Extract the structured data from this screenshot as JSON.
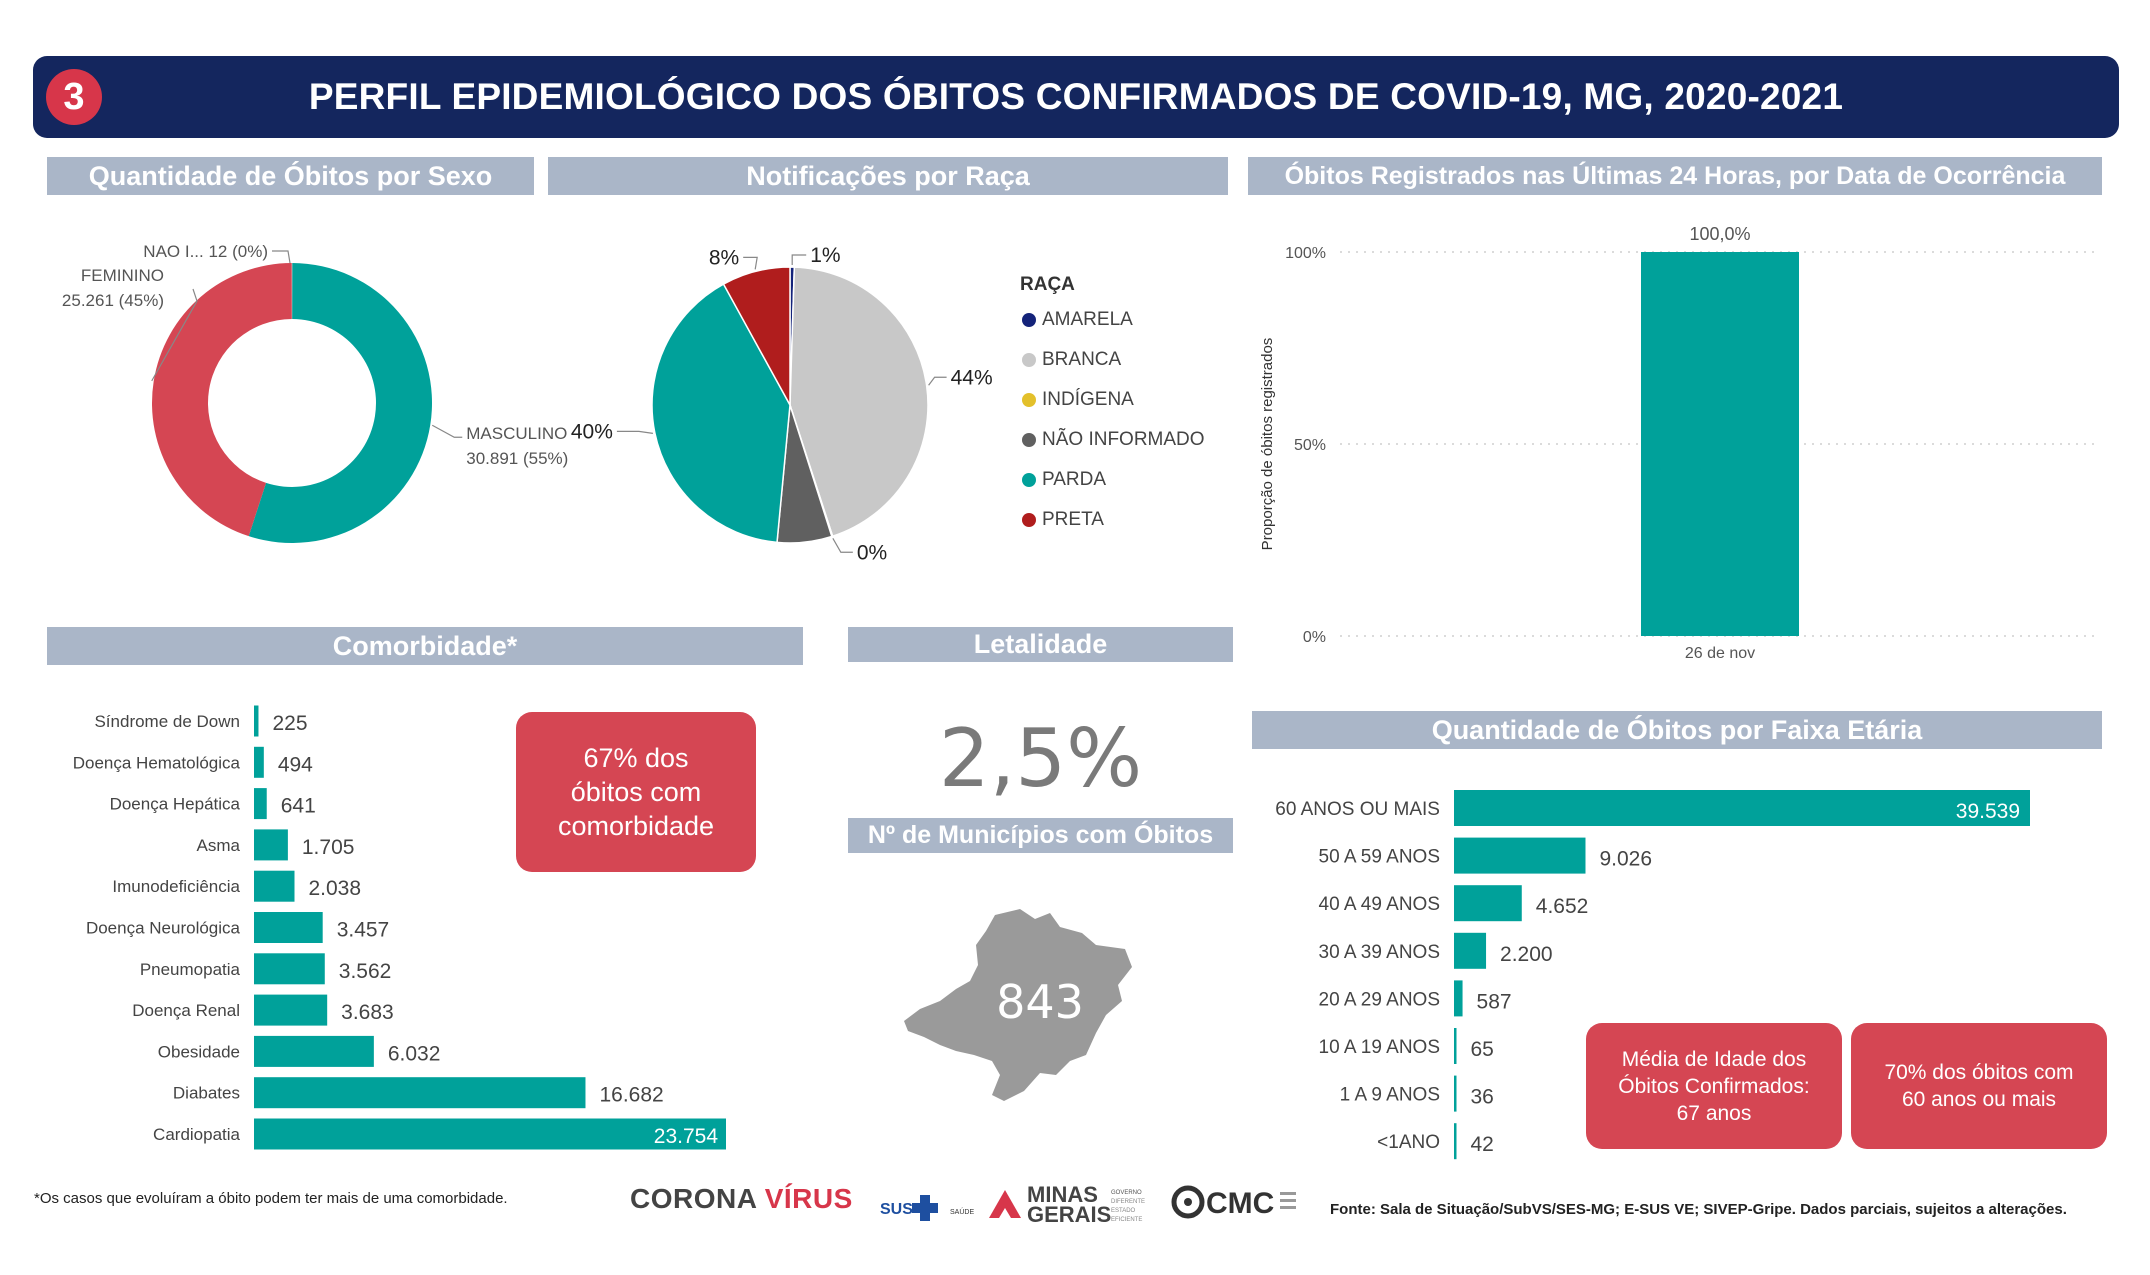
{
  "header": {
    "badge": "3",
    "title": "PERFIL EPIDEMIOLÓGICO DOS ÓBITOS CONFIRMADOS DE COVID-19, MG, 2020-2021"
  },
  "sections": {
    "sexo": "Quantidade de Óbitos por Sexo",
    "raca": "Notificações por Raça",
    "ultimas24h": "Óbitos Registrados nas Últimas 24 Horas, por Data de Ocorrência",
    "comorbidade": "Comorbidade*",
    "letalidade": "Letalidade",
    "municipios": "Nº de Municípios com Óbitos",
    "faixa_etaria": "Quantidade de Óbitos por Faixa Etária"
  },
  "colors": {
    "teal": "#00a19a",
    "red": "#d54653",
    "navy": "#14265e",
    "header_gray": "#aab6c8",
    "map_gray": "#9a9a9a"
  },
  "kpi": {
    "letalidade": "2,5%",
    "municipios": "843"
  },
  "callouts": {
    "comorbidade": [
      "67% dos",
      "óbitos com",
      "comorbidade"
    ],
    "media_idade": [
      "Média de Idade dos",
      "Óbitos Confirmados:",
      "67 anos"
    ],
    "sessenta_mais": [
      "70% dos óbitos com",
      "60 anos ou mais"
    ]
  },
  "chart_data": [
    {
      "id": "sexo",
      "type": "pie",
      "subtype": "donut",
      "slices": [
        {
          "label": "MASCULINO",
          "value": 30891,
          "value_label": "30.891 (55%)",
          "color": "#00a19a"
        },
        {
          "label": "FEMININO",
          "value": 25261,
          "value_label": "25.261 (45%)",
          "color": "#d54653"
        },
        {
          "label": "NAO I...",
          "value": 12,
          "value_label": "12 (0%)",
          "color": "#cccccc"
        }
      ]
    },
    {
      "id": "raca",
      "type": "pie",
      "legend_title": "RAÇA",
      "legend_position": "right",
      "slices": [
        {
          "label": "AMARELA",
          "percent": 0.5,
          "pct_label": "1%",
          "color": "#14237a"
        },
        {
          "label": "BRANCA",
          "percent": 44.5,
          "pct_label": "44%",
          "color": "#c8c8c8"
        },
        {
          "label": "INDÍGENA",
          "percent": 0.1,
          "pct_label": "0%",
          "color": "#e3c02b"
        },
        {
          "label": "NÃO INFORMADO",
          "percent": 6.4,
          "pct_label": "",
          "color": "#606060"
        },
        {
          "label": "PARDA",
          "percent": 40.5,
          "pct_label": "40%",
          "color": "#00a19a"
        },
        {
          "label": "PRETA",
          "percent": 8.0,
          "pct_label": "8%",
          "color": "#b01d1d"
        }
      ]
    },
    {
      "id": "ultimas24h",
      "type": "bar",
      "categories": [
        "26 de nov"
      ],
      "values": [
        100.0
      ],
      "value_labels": [
        "100,0%"
      ],
      "ylabel": "Proporção de óbitos registrados",
      "yticks": [
        "0%",
        "50%",
        "100%"
      ],
      "ylim": [
        0,
        100
      ],
      "grid": true
    },
    {
      "id": "comorbidade",
      "type": "bar",
      "orientation": "horizontal",
      "categories": [
        "Síndrome de Down",
        "Doença Hematológica",
        "Doença Hepática",
        "Asma",
        "Imunodeficiência",
        "Doença Neurológica",
        "Pneumopatia",
        "Doença Renal",
        "Obesidade",
        "Diabates",
        "Cardiopatia"
      ],
      "values": [
        225,
        494,
        641,
        1705,
        2038,
        3457,
        3562,
        3683,
        6032,
        16682,
        23754
      ],
      "value_labels": [
        "225",
        "494",
        "641",
        "1.705",
        "2.038",
        "3.457",
        "3.562",
        "3.683",
        "6.032",
        "16.682",
        "23.754"
      ]
    },
    {
      "id": "faixa_etaria",
      "type": "bar",
      "orientation": "horizontal",
      "categories": [
        "60 ANOS OU MAIS",
        "50 A 59 ANOS",
        "40 A 49 ANOS",
        "30 A 39 ANOS",
        "20 A 29 ANOS",
        "10 A 19 ANOS",
        "1 A 9 ANOS",
        "<1ANO"
      ],
      "values": [
        39539,
        9026,
        4652,
        2200,
        587,
        65,
        36,
        42
      ],
      "value_labels": [
        "39.539",
        "9.026",
        "4.652",
        "2.200",
        "587",
        "65",
        "36",
        "42"
      ]
    }
  ],
  "footer": {
    "note": "*Os casos que evoluíram a óbito podem ter mais de uma comorbidade.",
    "source": "Fonte: Sala de Situação/SubVS/SES-MG; E-SUS VE; SIVEP-Gripe. Dados parciais, sujeitos a alterações."
  },
  "logos": {
    "corona_a": "CORONA ",
    "corona_b": "VÍRUS",
    "sus": "SUS",
    "saude": "SAÚDE",
    "minas": "MINAS",
    "gerais": "GERAIS",
    "governo": "GOVERNO",
    "diferente": "DIFERENTE",
    "estado": "ESTADO",
    "eficiente": "EFICIENTE",
    "cmc": "CMC"
  }
}
